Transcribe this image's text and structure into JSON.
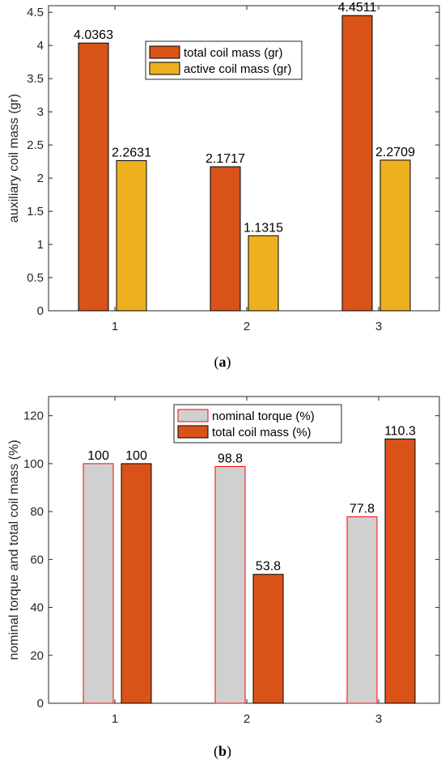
{
  "chart_data": [
    {
      "type": "bar",
      "ylabel": "auxiliary coil mass (gr)",
      "xlabel": "",
      "title": "",
      "categories": [
        "1",
        "2",
        "3"
      ],
      "ylim": [
        0,
        4.6
      ],
      "yticks": [
        0,
        0.5,
        1,
        1.5,
        2,
        2.5,
        3,
        3.5,
        4,
        4.5
      ],
      "grid": false,
      "legend_position": "top-center",
      "series": [
        {
          "name": "total coil mass (gr)",
          "values": [
            4.0363,
            2.1717,
            4.4511
          ],
          "labels": [
            "4.0363",
            "2.1717",
            "4.4511"
          ],
          "fill": "#d95319",
          "edge": "#000000"
        },
        {
          "name": "active coil mass (gr)",
          "values": [
            2.2631,
            1.1315,
            2.2709
          ],
          "labels": [
            "2.2631",
            "1.1315",
            "2.2709"
          ],
          "fill": "#edb120",
          "edge": "#000000"
        }
      ],
      "caption": {
        "open": "(",
        "letter": "a",
        "close": ")"
      }
    },
    {
      "type": "bar",
      "ylabel": "nominal torque and total coil mass (%)",
      "xlabel": "",
      "title": "",
      "categories": [
        "1",
        "2",
        "3"
      ],
      "ylim": [
        0,
        128
      ],
      "yticks": [
        0,
        20,
        40,
        60,
        80,
        100,
        120
      ],
      "grid": false,
      "legend_position": "top-center",
      "series": [
        {
          "name": "nominal torque (%)",
          "values": [
            100,
            98.8,
            77.8
          ],
          "labels": [
            "100",
            "98.8",
            "77.8"
          ],
          "fill": "#d0d0d0",
          "edge": "#ff0000"
        },
        {
          "name": "total coil mass (%)",
          "values": [
            100,
            53.8,
            110.3
          ],
          "labels": [
            "100",
            "53.8",
            "110.3"
          ],
          "fill": "#d95319",
          "edge": "#000000"
        }
      ],
      "caption": {
        "open": "(",
        "letter": "b",
        "close": ")"
      }
    }
  ]
}
